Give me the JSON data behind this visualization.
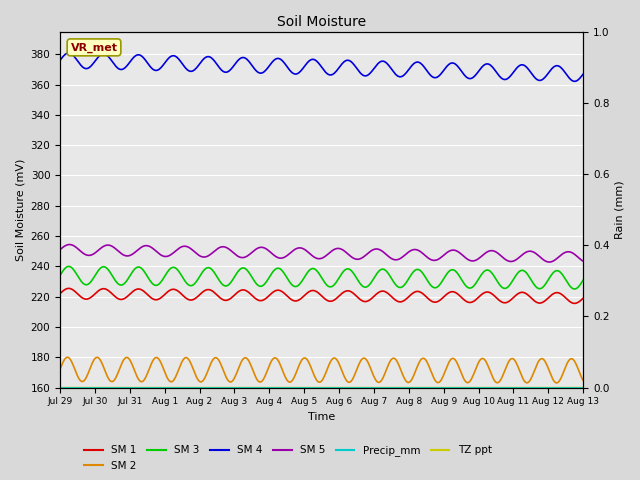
{
  "title": "Soil Moisture",
  "ylabel_left": "Soil Moisture (mV)",
  "ylabel_right": "Rain (mm)",
  "xlabel": "Time",
  "ylim_left": [
    160,
    395
  ],
  "ylim_right": [
    0.0,
    1.0
  ],
  "yticks_left": [
    160,
    180,
    200,
    220,
    240,
    260,
    280,
    300,
    320,
    340,
    360,
    380
  ],
  "yticks_right": [
    0.0,
    0.2,
    0.4,
    0.6,
    0.8,
    1.0
  ],
  "x_start_days": 0,
  "x_end_days": 15,
  "num_points": 600,
  "background_color": "#d9d9d9",
  "axes_bg_color": "#e8e8e8",
  "grid_color": "#ffffff",
  "series": {
    "SM1": {
      "color": "#dd0000",
      "base": 222,
      "amp": 3.5,
      "period": 1.0,
      "trend": -3
    },
    "SM2": {
      "color": "#dd8800",
      "base": 172,
      "amp": 8.0,
      "period": 0.85,
      "trend": -1
    },
    "SM3": {
      "color": "#00cc00",
      "base": 234,
      "amp": 6.0,
      "period": 1.0,
      "trend": -3
    },
    "SM4": {
      "color": "#0000dd",
      "base": 376,
      "amp": 5.0,
      "period": 1.0,
      "trend": -9
    },
    "SM5": {
      "color": "#9900aa",
      "base": 251,
      "amp": 3.5,
      "period": 1.1,
      "trend": -5
    },
    "Precip_mm": {
      "color": "#00cccc",
      "base": 0.0,
      "amp": 0,
      "period": 1.0,
      "trend": 0
    },
    "TZ_ppt": {
      "color": "#cccc00",
      "base": 160.5,
      "amp": 0,
      "period": 1.0,
      "trend": 0
    }
  },
  "xtick_labels": [
    "Jul 29",
    "Jul 30",
    "Jul 31",
    "Aug 1",
    "Aug 2",
    "Aug 3",
    "Aug 4",
    "Aug 5",
    "Aug 6",
    "Aug 7",
    "Aug 8",
    "Aug 9",
    "Aug 10",
    "Aug 11",
    "Aug 12",
    "Aug 13"
  ],
  "xtick_positions": [
    0,
    1,
    2,
    3,
    4,
    5,
    6,
    7,
    8,
    9,
    10,
    11,
    12,
    13,
    14,
    15
  ],
  "annotation_text": "VR_met",
  "legend_labels": [
    "SM 1",
    "SM 2",
    "SM 3",
    "SM 4",
    "SM 5",
    "Precip_mm",
    "TZ ppt"
  ],
  "legend_colors": [
    "#dd0000",
    "#dd8800",
    "#00cc00",
    "#0000dd",
    "#9900aa",
    "#00cccc",
    "#cccc00"
  ]
}
